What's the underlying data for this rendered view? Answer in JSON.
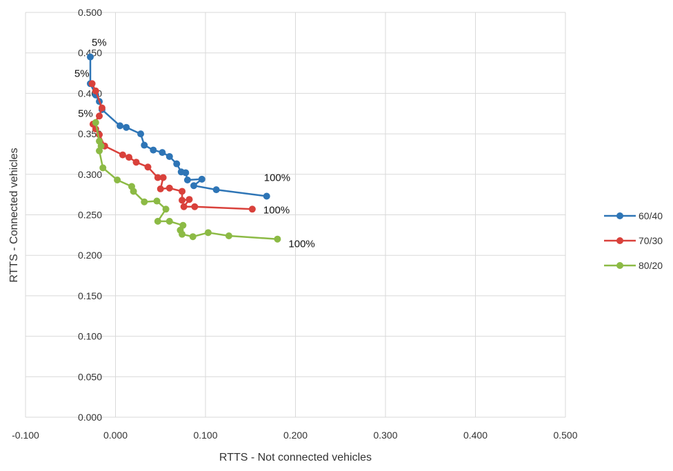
{
  "chart_data": {
    "type": "scatter",
    "xlabel": "RTTS - Not connected vehicles",
    "ylabel": "RTTS - Connected vehicles",
    "xlim": [
      -0.1,
      0.5
    ],
    "ylim": [
      0.0,
      0.5
    ],
    "x_ticks": [
      "-0.100",
      "0.000",
      "0.100",
      "0.200",
      "0.300",
      "0.400",
      "0.500"
    ],
    "y_ticks": [
      "0.000",
      "0.050",
      "0.100",
      "0.150",
      "0.200",
      "0.250",
      "0.300",
      "0.350",
      "0.400",
      "0.450",
      "0.500"
    ],
    "grid": true,
    "legend_position": "right",
    "series": [
      {
        "name": "60/40",
        "color": "#2e75b6",
        "points": [
          [
            -0.028,
            0.445
          ],
          [
            -0.028,
            0.412
          ],
          [
            -0.022,
            0.398
          ],
          [
            -0.018,
            0.39
          ],
          [
            -0.015,
            0.38
          ],
          [
            0.005,
            0.36
          ],
          [
            0.012,
            0.358
          ],
          [
            0.028,
            0.35
          ],
          [
            0.032,
            0.336
          ],
          [
            0.042,
            0.33
          ],
          [
            0.052,
            0.327
          ],
          [
            0.06,
            0.322
          ],
          [
            0.068,
            0.313
          ],
          [
            0.073,
            0.303
          ],
          [
            0.078,
            0.302
          ],
          [
            0.08,
            0.293
          ],
          [
            0.096,
            0.294
          ],
          [
            0.087,
            0.286
          ],
          [
            0.112,
            0.281
          ],
          [
            0.168,
            0.273
          ]
        ]
      },
      {
        "name": "70/30",
        "color": "#d9413b",
        "points": [
          [
            -0.026,
            0.412
          ],
          [
            -0.022,
            0.403
          ],
          [
            -0.015,
            0.382
          ],
          [
            -0.018,
            0.372
          ],
          [
            -0.025,
            0.362
          ],
          [
            -0.022,
            0.356
          ],
          [
            -0.018,
            0.349
          ],
          [
            -0.012,
            0.335
          ],
          [
            0.008,
            0.324
          ],
          [
            0.015,
            0.321
          ],
          [
            0.023,
            0.315
          ],
          [
            0.036,
            0.309
          ],
          [
            0.047,
            0.296
          ],
          [
            0.053,
            0.296
          ],
          [
            0.05,
            0.282
          ],
          [
            0.06,
            0.283
          ],
          [
            0.074,
            0.279
          ],
          [
            0.074,
            0.268
          ],
          [
            0.082,
            0.269
          ],
          [
            0.076,
            0.26
          ],
          [
            0.088,
            0.26
          ],
          [
            0.152,
            0.257
          ]
        ]
      },
      {
        "name": "80/20",
        "color": "#8cba45",
        "points": [
          [
            -0.022,
            0.364
          ],
          [
            -0.018,
            0.341
          ],
          [
            -0.016,
            0.335
          ],
          [
            -0.018,
            0.329
          ],
          [
            -0.014,
            0.308
          ],
          [
            0.002,
            0.293
          ],
          [
            0.018,
            0.285
          ],
          [
            0.02,
            0.279
          ],
          [
            0.032,
            0.266
          ],
          [
            0.046,
            0.267
          ],
          [
            0.056,
            0.257
          ],
          [
            0.047,
            0.242
          ],
          [
            0.06,
            0.242
          ],
          [
            0.075,
            0.237
          ],
          [
            0.072,
            0.231
          ],
          [
            0.074,
            0.226
          ],
          [
            0.086,
            0.223
          ],
          [
            0.103,
            0.228
          ],
          [
            0.126,
            0.224
          ],
          [
            0.18,
            0.22
          ]
        ]
      }
    ],
    "annotations": [
      {
        "text": "5%",
        "x": -0.028,
        "y": 0.445,
        "anchor": "above"
      },
      {
        "text": "5%",
        "x": -0.026,
        "y": 0.412,
        "anchor": "left"
      },
      {
        "text": "5%",
        "x": -0.022,
        "y": 0.364,
        "anchor": "left-above"
      },
      {
        "text": "100%",
        "x": 0.168,
        "y": 0.273,
        "anchor": "above-right"
      },
      {
        "text": "100%",
        "x": 0.152,
        "y": 0.257,
        "anchor": "right"
      },
      {
        "text": "100%",
        "x": 0.18,
        "y": 0.22,
        "anchor": "below-right"
      }
    ]
  }
}
